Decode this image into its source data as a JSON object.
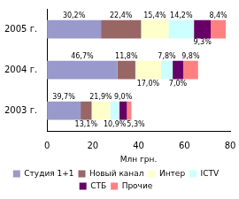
{
  "chart_data": {
    "type": "bar",
    "orientation": "horizontal",
    "stacked": true,
    "categories": [
      "2005 г.",
      "2004 г.",
      "2003 г."
    ],
    "x_label": "Млн грн.",
    "xlim": [
      0,
      80
    ],
    "xticks": [
      0,
      20,
      40,
      60,
      80
    ],
    "grid": false,
    "legend": "bottom",
    "series": [
      {
        "name": "Студия 1+1",
        "color": "#9999cc",
        "values": [
          23.6,
          30.8,
          14.7
        ],
        "share_labels": [
          "30,2%",
          "46,7%",
          "39,7%"
        ]
      },
      {
        "name": "Новый канал",
        "color": "#996666",
        "values": [
          17.5,
          7.8,
          4.8
        ],
        "share_labels": [
          "22,4%",
          "11,8%",
          "13,1%"
        ]
      },
      {
        "name": "Интер",
        "color": "#ffffcc",
        "values": [
          12.0,
          11.2,
          8.1
        ],
        "share_labels": [
          "15,4%",
          "17,0%",
          "21,9%"
        ]
      },
      {
        "name": "ICTV",
        "color": "#ccffff",
        "values": [
          11.1,
          5.1,
          4.0
        ],
        "share_labels": [
          "14,2%",
          "7,8%",
          "10,9%"
        ]
      },
      {
        "name": "СТБ",
        "color": "#660066",
        "values": [
          7.3,
          4.6,
          3.3
        ],
        "share_labels": [
          "9,3%",
          "7,0%",
          "9,0%"
        ]
      },
      {
        "name": "Прочие",
        "color": "#ff8080",
        "values": [
          6.6,
          6.5,
          2.0
        ],
        "share_labels": [
          "8,4%",
          "9,8%",
          "5,3%"
        ]
      }
    ]
  }
}
